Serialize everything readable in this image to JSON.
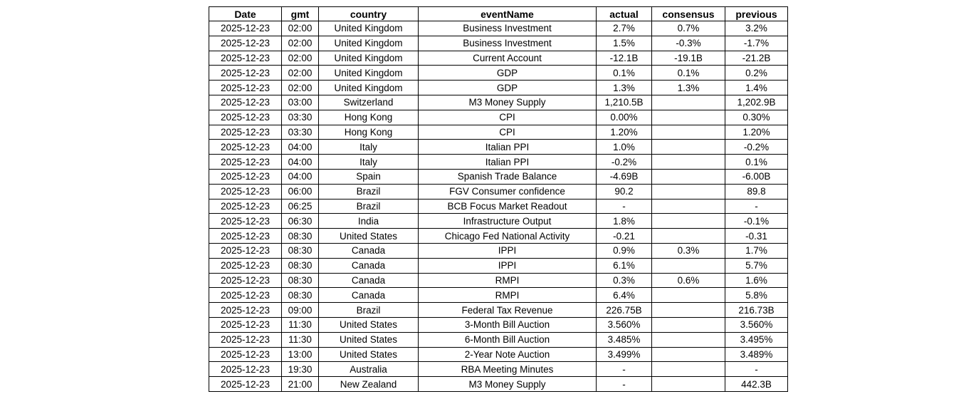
{
  "chart_data": {
    "type": "table",
    "title": "",
    "columns": [
      "Date",
      "gmt",
      "country",
      "eventName",
      "actual",
      "consensus",
      "previous"
    ],
    "column_keys": [
      "date",
      "gmt",
      "country",
      "eventname",
      "actual",
      "consensus",
      "previous"
    ],
    "rows": [
      [
        "2025-12-23",
        "02:00",
        "United Kingdom",
        "Business Investment",
        "2.7%",
        "0.7%",
        "3.2%"
      ],
      [
        "2025-12-23",
        "02:00",
        "United Kingdom",
        "Business Investment",
        "1.5%",
        "-0.3%",
        "-1.7%"
      ],
      [
        "2025-12-23",
        "02:00",
        "United Kingdom",
        "Current Account",
        "-12.1B",
        "-19.1B",
        "-21.2B"
      ],
      [
        "2025-12-23",
        "02:00",
        "United Kingdom",
        "GDP",
        "0.1%",
        "0.1%",
        "0.2%"
      ],
      [
        "2025-12-23",
        "02:00",
        "United Kingdom",
        "GDP",
        "1.3%",
        "1.3%",
        "1.4%"
      ],
      [
        "2025-12-23",
        "03:00",
        "Switzerland",
        "M3 Money Supply",
        "1,210.5B",
        "",
        "1,202.9B"
      ],
      [
        "2025-12-23",
        "03:30",
        "Hong Kong",
        "CPI",
        "0.00%",
        "",
        "0.30%"
      ],
      [
        "2025-12-23",
        "03:30",
        "Hong Kong",
        "CPI",
        "1.20%",
        "",
        "1.20%"
      ],
      [
        "2025-12-23",
        "04:00",
        "Italy",
        "Italian PPI",
        "1.0%",
        "",
        "-0.2%"
      ],
      [
        "2025-12-23",
        "04:00",
        "Italy",
        "Italian PPI",
        "-0.2%",
        "",
        "0.1%"
      ],
      [
        "2025-12-23",
        "04:00",
        "Spain",
        "Spanish Trade Balance",
        "-4.69B",
        "",
        "-6.00B"
      ],
      [
        "2025-12-23",
        "06:00",
        "Brazil",
        "FGV Consumer confidence",
        "90.2",
        "",
        "89.8"
      ],
      [
        "2025-12-23",
        "06:25",
        "Brazil",
        "BCB Focus Market Readout",
        "-",
        "",
        "-"
      ],
      [
        "2025-12-23",
        "06:30",
        "India",
        "Infrastructure Output",
        "1.8%",
        "",
        "-0.1%"
      ],
      [
        "2025-12-23",
        "08:30",
        "United States",
        "Chicago Fed National Activity",
        "-0.21",
        "",
        "-0.31"
      ],
      [
        "2025-12-23",
        "08:30",
        "Canada",
        "IPPI",
        "0.9%",
        "0.3%",
        "1.7%"
      ],
      [
        "2025-12-23",
        "08:30",
        "Canada",
        "IPPI",
        "6.1%",
        "",
        "5.7%"
      ],
      [
        "2025-12-23",
        "08:30",
        "Canada",
        "RMPI",
        "0.3%",
        "0.6%",
        "1.6%"
      ],
      [
        "2025-12-23",
        "08:30",
        "Canada",
        "RMPI",
        "6.4%",
        "",
        "5.8%"
      ],
      [
        "2025-12-23",
        "09:00",
        "Brazil",
        "Federal Tax Revenue",
        "226.75B",
        "",
        "216.73B"
      ],
      [
        "2025-12-23",
        "11:30",
        "United States",
        "3-Month Bill Auction",
        "3.560%",
        "",
        "3.560%"
      ],
      [
        "2025-12-23",
        "11:30",
        "United States",
        "6-Month Bill Auction",
        "3.485%",
        "",
        "3.495%"
      ],
      [
        "2025-12-23",
        "13:00",
        "United States",
        "2-Year Note Auction",
        "3.499%",
        "",
        "3.489%"
      ],
      [
        "2025-12-23",
        "19:30",
        "Australia",
        "RBA Meeting Minutes",
        "-",
        "",
        "-"
      ],
      [
        "2025-12-23",
        "21:00",
        "New Zealand",
        "M3 Money Supply",
        "-",
        "",
        "442.3B"
      ]
    ],
    "layout": {
      "grid": true,
      "border_color": "#000000",
      "background_color": "#ffffff",
      "text_color": "#000000",
      "header_bold": true,
      "cell_alignment": "center"
    }
  }
}
